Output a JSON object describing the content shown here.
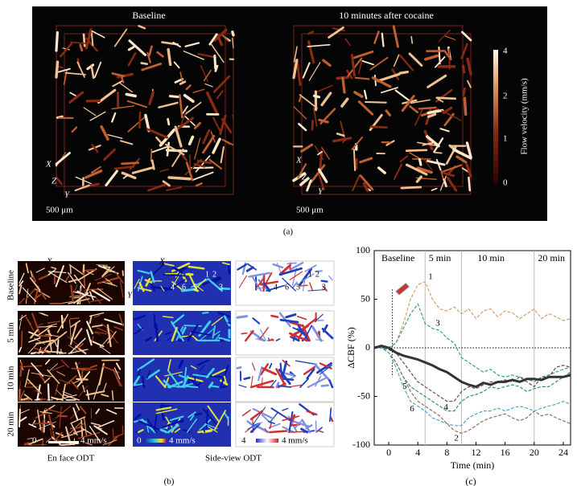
{
  "panel_a": {
    "label": "(a)",
    "titles": [
      "Baseline",
      "10 minutes after cocaine"
    ],
    "axes": [
      "X",
      "Z",
      "Y"
    ],
    "scale_bar": "500 μm",
    "colorbar": {
      "title": "Flow velocity (mm/s)",
      "ticks": [
        "4",
        "2",
        "1",
        "0"
      ]
    }
  },
  "panel_b": {
    "label": "(b)",
    "axes": [
      "X",
      "Y"
    ],
    "rows": [
      "Baseline",
      "5 min",
      "10 min",
      "20 min"
    ],
    "columns": [
      "En face ODT",
      "Side-view ODT"
    ],
    "scale_min": "0",
    "scale_max": "4 mm/s",
    "scale_side": "4",
    "vessels": [
      "1",
      "2",
      "3",
      "4",
      "5",
      "6"
    ]
  },
  "chart_data": {
    "type": "line",
    "label": "(c)",
    "xlabel": "Time (min)",
    "ylabel": "ΔCBF (%)",
    "annotations": [
      "Baseline",
      "5 min",
      "10 min",
      "20 min"
    ],
    "vlines": [
      5,
      10,
      20
    ],
    "xlim": [
      -2,
      25
    ],
    "xticks": [
      0,
      4,
      8,
      12,
      16,
      20,
      24
    ],
    "ylim": [
      -100,
      100
    ],
    "yticks": [
      -100,
      -50,
      0,
      50,
      100
    ],
    "x": [
      -2,
      -1,
      0,
      1,
      2,
      3,
      4,
      5,
      6,
      7,
      8,
      9,
      10,
      11,
      12,
      13,
      14,
      15,
      16,
      17,
      18,
      19,
      20,
      21,
      22,
      23,
      24,
      25
    ],
    "series": [
      {
        "name": "1",
        "color": "#d4a06a",
        "values": [
          0,
          2,
          0,
          5,
          25,
          50,
          65,
          68,
          50,
          40,
          38,
          42,
          35,
          40,
          30,
          38,
          40,
          32,
          38,
          36,
          30,
          35,
          40,
          30,
          35,
          32,
          28,
          30
        ]
      },
      {
        "name": "3",
        "color": "#3a9a9a",
        "values": [
          0,
          1,
          0,
          5,
          20,
          35,
          45,
          25,
          20,
          18,
          10,
          5,
          -10,
          -15,
          -20,
          -25,
          -22,
          -28,
          -30,
          -28,
          -30,
          -32,
          -35,
          -30,
          -28,
          -25,
          -22,
          -20
        ]
      },
      {
        "name": "4",
        "color": "#6b4a5a",
        "values": [
          0,
          0,
          -2,
          -5,
          -15,
          -25,
          -35,
          -40,
          -45,
          -50,
          -55,
          -55,
          -45,
          -40,
          -42,
          -38,
          -35,
          -35,
          -33,
          -35,
          -30,
          -35,
          -40,
          -30,
          -30,
          -20,
          -18,
          -20
        ]
      },
      {
        "name": "5",
        "color": "#2f8f8f",
        "values": [
          0,
          0,
          -5,
          -15,
          -30,
          -40,
          -45,
          -50,
          -55,
          -60,
          -65,
          -65,
          -55,
          -50,
          -48,
          -45,
          -40,
          -42,
          -40,
          -38,
          -40,
          -45,
          -42,
          -40,
          -40,
          -35,
          -30,
          -25
        ]
      },
      {
        "name": "2",
        "color": "#9a6a5a",
        "values": [
          0,
          0,
          -5,
          -15,
          -30,
          -45,
          -55,
          -60,
          -65,
          -70,
          -78,
          -85,
          -88,
          -85,
          -80,
          -75,
          -72,
          -70,
          -68,
          -72,
          -75,
          -72,
          -65,
          -70,
          -68,
          -72,
          -75,
          -78
        ]
      },
      {
        "name": "6",
        "color": "#4aa8c0",
        "values": [
          0,
          0,
          -5,
          -20,
          -40,
          -55,
          -60,
          -65,
          -72,
          -75,
          -78,
          -80,
          -80,
          -72,
          -68,
          -65,
          -65,
          -62,
          -65,
          -62,
          -60,
          -62,
          -65,
          -62,
          -60,
          -58,
          -55,
          -58
        ]
      },
      {
        "color": "#333333",
        "width": 3,
        "values": [
          0,
          2,
          0,
          -5,
          -8,
          -10,
          -12,
          -15,
          -18,
          -22,
          -25,
          -30,
          -35,
          -38,
          -40,
          -36,
          -38,
          -35,
          -35,
          -33,
          -35,
          -32,
          -32,
          -33,
          -30,
          -30,
          -30,
          -28
        ]
      }
    ]
  }
}
